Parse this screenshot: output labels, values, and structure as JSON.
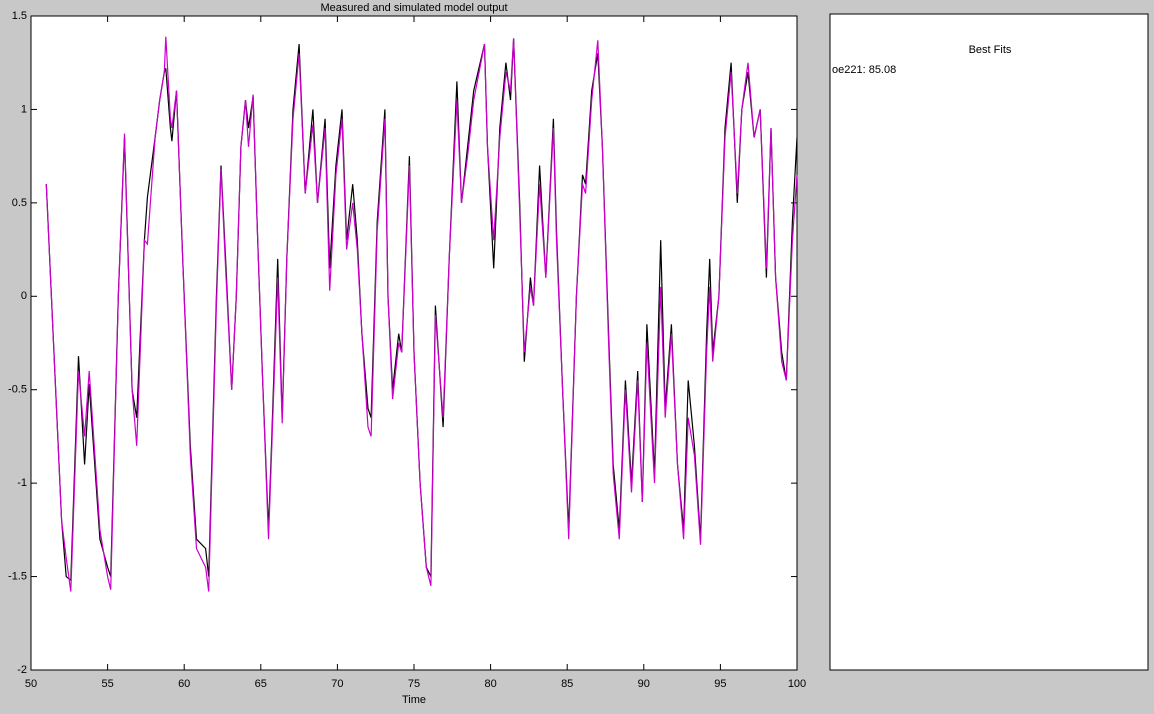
{
  "chart_data": {
    "type": "line",
    "title": "Measured and simulated model output",
    "xlabel": "Time",
    "x": [
      51.0,
      52.0,
      52.3,
      52.6,
      53.1,
      53.5,
      53.8,
      54.5,
      55.0,
      55.2,
      55.7,
      56.1,
      56.6,
      56.9,
      57.4,
      57.6,
      58.1,
      58.4,
      58.7,
      58.8,
      59.1,
      59.2,
      59.5,
      59.9,
      60.4,
      60.8,
      61.4,
      61.6,
      62.1,
      62.4,
      62.7,
      63.1,
      63.4,
      63.7,
      64.0,
      64.2,
      64.5,
      64.8,
      65.1,
      65.5,
      65.7,
      66.1,
      66.4,
      66.7,
      67.1,
      67.5,
      67.9,
      68.4,
      68.7,
      69.2,
      69.5,
      69.9,
      70.3,
      70.6,
      71.0,
      71.3,
      71.6,
      72.0,
      72.2,
      72.6,
      73.1,
      73.3,
      73.6,
      74.0,
      74.2,
      74.7,
      75.0,
      75.4,
      75.8,
      76.1,
      76.4,
      76.9,
      77.3,
      77.8,
      78.1,
      78.5,
      78.9,
      79.6,
      79.8,
      80.2,
      80.6,
      81.0,
      81.3,
      81.5,
      81.9,
      82.2,
      82.6,
      82.8,
      83.2,
      83.6,
      84.1,
      84.3,
      84.7,
      85.1,
      85.6,
      86.0,
      86.2,
      86.6,
      87.0,
      87.3,
      87.7,
      88.0,
      88.4,
      88.8,
      89.2,
      89.6,
      89.9,
      90.2,
      90.7,
      91.1,
      91.4,
      91.8,
      92.2,
      92.6,
      92.9,
      93.3,
      93.7,
      94.1,
      94.3,
      94.5,
      94.9,
      95.3,
      95.7,
      96.1,
      96.4,
      96.8,
      97.2,
      97.6,
      98.0,
      98.3,
      98.6,
      99.0,
      99.3,
      99.7,
      100.0
    ],
    "series": [
      {
        "color": "#000000",
        "values": [
          0.6,
          -1.2,
          -1.5,
          -1.52,
          -0.32,
          -0.9,
          -0.47,
          -1.3,
          -1.45,
          -1.5,
          0.0,
          0.85,
          -0.5,
          -0.65,
          0.3,
          0.53,
          0.85,
          1.05,
          1.2,
          1.22,
          0.9,
          0.83,
          1.1,
          0.2,
          -0.8,
          -1.3,
          -1.35,
          -1.5,
          0.0,
          0.7,
          0.2,
          -0.5,
          0.0,
          0.8,
          1.05,
          0.9,
          1.07,
          0.3,
          -0.4,
          -1.25,
          -0.8,
          0.2,
          -0.65,
          0.2,
          1.0,
          1.35,
          0.55,
          1.0,
          0.5,
          0.95,
          0.15,
          0.7,
          1.0,
          0.3,
          0.6,
          0.3,
          -0.2,
          -0.6,
          -0.65,
          0.4,
          1.0,
          0.0,
          -0.5,
          -0.2,
          -0.3,
          0.75,
          -0.3,
          -1.0,
          -1.45,
          -1.5,
          -0.05,
          -0.7,
          0.2,
          1.15,
          0.5,
          0.8,
          1.1,
          1.35,
          0.8,
          0.15,
          0.9,
          1.25,
          1.05,
          1.38,
          0.5,
          -0.35,
          0.1,
          -0.05,
          0.7,
          0.1,
          0.95,
          0.35,
          -0.5,
          -1.25,
          0.0,
          0.65,
          0.6,
          1.1,
          1.3,
          0.8,
          -0.2,
          -0.9,
          -1.25,
          -0.45,
          -1.0,
          -0.4,
          -1.1,
          -0.15,
          -0.95,
          0.3,
          -0.6,
          -0.15,
          -0.9,
          -1.25,
          -0.45,
          -0.8,
          -1.3,
          -0.2,
          0.2,
          -0.3,
          0.0,
          0.9,
          1.25,
          0.5,
          1.0,
          1.2,
          0.85,
          1.0,
          0.1,
          0.9,
          0.1,
          -0.3,
          -0.45,
          0.4,
          0.85
        ]
      },
      {
        "name": "oe221: 85.08",
        "color": "#cc00cc",
        "values": [
          0.6,
          -1.2,
          -1.4,
          -1.58,
          -0.4,
          -0.75,
          -0.4,
          -1.25,
          -1.5,
          -1.57,
          0.0,
          0.87,
          -0.5,
          -0.8,
          0.3,
          0.28,
          0.85,
          1.05,
          1.2,
          1.39,
          0.95,
          0.9,
          1.1,
          0.2,
          -0.85,
          -1.35,
          -1.45,
          -1.58,
          -0.05,
          0.68,
          0.15,
          -0.5,
          0.0,
          0.8,
          1.05,
          0.8,
          1.08,
          0.3,
          -0.4,
          -1.3,
          -0.85,
          0.1,
          -0.68,
          0.2,
          0.95,
          1.3,
          0.55,
          0.92,
          0.5,
          0.9,
          0.03,
          0.65,
          0.95,
          0.25,
          0.5,
          0.25,
          -0.2,
          -0.7,
          -0.75,
          0.35,
          0.95,
          0.0,
          -0.55,
          -0.25,
          -0.3,
          0.7,
          -0.3,
          -1.0,
          -1.45,
          -1.55,
          -0.1,
          -0.65,
          0.2,
          1.05,
          0.5,
          0.75,
          1.05,
          1.35,
          0.8,
          0.3,
          0.85,
          1.2,
          1.1,
          1.38,
          0.45,
          -0.3,
          0.05,
          -0.05,
          0.6,
          0.1,
          0.9,
          0.3,
          -0.5,
          -1.3,
          0.0,
          0.6,
          0.55,
          1.05,
          1.37,
          0.8,
          -0.25,
          -0.95,
          -1.3,
          -0.5,
          -1.05,
          -0.45,
          -1.1,
          -0.25,
          -1.0,
          0.05,
          -0.65,
          -0.2,
          -0.9,
          -1.3,
          -0.65,
          -0.85,
          -1.33,
          -0.3,
          0.05,
          -0.35,
          0.0,
          0.85,
          1.2,
          0.55,
          1.0,
          1.25,
          0.85,
          1.0,
          0.15,
          0.9,
          0.1,
          -0.35,
          -0.45,
          0.3,
          0.65
        ]
      }
    ],
    "xlim": [
      50,
      100
    ],
    "xticks": [
      50,
      55,
      60,
      65,
      70,
      75,
      80,
      85,
      90,
      95,
      100
    ],
    "ylim": [
      -2,
      1.5
    ],
    "yticks": [
      -2,
      -1.5,
      -1,
      -0.5,
      0,
      0.5,
      1,
      1.5
    ],
    "legend_title": "Best Fits"
  }
}
